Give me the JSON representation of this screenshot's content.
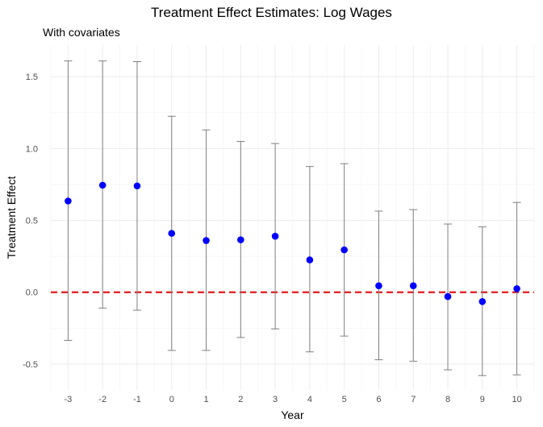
{
  "chart_data": {
    "type": "scatter",
    "title": "Treatment Effect Estimates: Log Wages",
    "subtitle": "With covariates",
    "xlabel": "Year",
    "ylabel": "Treatment Effect",
    "xlim": [
      -3.5,
      10.5
    ],
    "ylim": [
      -0.68,
      1.72
    ],
    "x_ticks": [
      "-3",
      "-2",
      "-1",
      "0",
      "1",
      "2",
      "3",
      "4",
      "5",
      "6",
      "7",
      "8",
      "9",
      "10"
    ],
    "y_ticks": [
      {
        "value": 1.5,
        "label": "1.5"
      },
      {
        "value": 1.0,
        "label": "1.0"
      },
      {
        "value": 0.5,
        "label": "0.5"
      },
      {
        "value": 0.0,
        "label": "0.0"
      },
      {
        "value": -0.5,
        "label": "-0.5"
      }
    ],
    "points": [
      {
        "x": -3,
        "y": 0.635,
        "lower": -0.335,
        "upper": 1.61
      },
      {
        "x": -2,
        "y": 0.745,
        "lower": -0.11,
        "upper": 1.61
      },
      {
        "x": -1,
        "y": 0.74,
        "lower": -0.125,
        "upper": 1.605
      },
      {
        "x": 0,
        "y": 0.41,
        "lower": -0.405,
        "upper": 1.225
      },
      {
        "x": 1,
        "y": 0.36,
        "lower": -0.405,
        "upper": 1.13
      },
      {
        "x": 2,
        "y": 0.365,
        "lower": -0.315,
        "upper": 1.05
      },
      {
        "x": 3,
        "y": 0.39,
        "lower": -0.255,
        "upper": 1.035
      },
      {
        "x": 4,
        "y": 0.225,
        "lower": -0.415,
        "upper": 0.875
      },
      {
        "x": 5,
        "y": 0.295,
        "lower": -0.305,
        "upper": 0.895
      },
      {
        "x": 6,
        "y": 0.045,
        "lower": -0.47,
        "upper": 0.565
      },
      {
        "x": 7,
        "y": 0.045,
        "lower": -0.48,
        "upper": 0.575
      },
      {
        "x": 8,
        "y": -0.03,
        "lower": -0.54,
        "upper": 0.475
      },
      {
        "x": 9,
        "y": -0.065,
        "lower": -0.58,
        "upper": 0.455
      },
      {
        "x": 10,
        "y": 0.025,
        "lower": -0.575,
        "upper": 0.625
      }
    ],
    "reference_line": {
      "y": 0,
      "color": "#e41a1c",
      "style": "dashed"
    },
    "point_color": "#0000ff",
    "errorbar_color": "#808080",
    "grid": true
  }
}
